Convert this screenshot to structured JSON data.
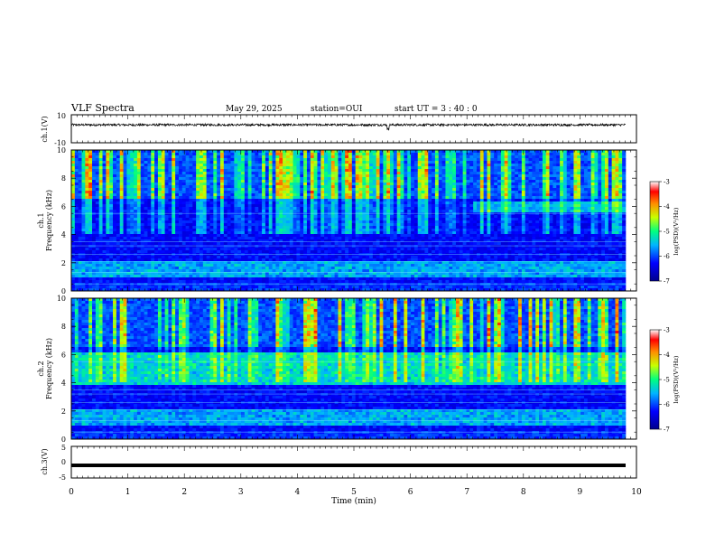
{
  "header": {
    "title": "VLF Spectra",
    "date": "May 29, 2025",
    "station": "station=OUI",
    "start": "start UT = 3 : 40 : 0"
  },
  "chart_data": [
    {
      "id": "ch1-waveform",
      "type": "line",
      "ylabel": "ch.1(V)",
      "ylim": [
        -10,
        10
      ],
      "y_ticks": [
        "10",
        "-10"
      ],
      "xlim": [
        0,
        10
      ],
      "description_level": 2.8,
      "color": "#000000"
    },
    {
      "id": "ch1-spectrogram",
      "type": "heatmap",
      "ylabel_lines": [
        "ch.1",
        "Frequency (kHz)"
      ],
      "ylim": [
        0,
        10
      ],
      "y_ticks": [
        "0",
        "2",
        "4",
        "6",
        "8",
        "10"
      ],
      "xlim": [
        0,
        10
      ],
      "colorbar": {
        "label": "log(PSD)(V²/Hz)",
        "range": [
          -7,
          -3
        ],
        "ticks": [
          "-3",
          "-4",
          "-5",
          "-6",
          "-7"
        ]
      }
    },
    {
      "id": "ch2-spectrogram",
      "type": "heatmap",
      "ylabel_lines": [
        "ch.2",
        "Frequency (kHz)"
      ],
      "ylim": [
        0,
        10
      ],
      "y_ticks": [
        "0",
        "2",
        "4",
        "6",
        "8",
        "10"
      ],
      "xlim": [
        0,
        10
      ],
      "colorbar": {
        "label": "log(PSD)(V²/Hz)",
        "range": [
          -7,
          -3
        ],
        "ticks": [
          "-3",
          "-4",
          "-5",
          "-6",
          "-7"
        ]
      }
    },
    {
      "id": "ch3-waveform",
      "type": "line",
      "ylabel": "ch.3(V)",
      "ylim": [
        -5,
        5
      ],
      "y_ticks": [
        "5",
        "0",
        "-5"
      ],
      "xlim": [
        0,
        10
      ],
      "level": -1.0,
      "color": "#000000"
    }
  ],
  "x_axis": {
    "label": "Time (min)",
    "ticks": [
      "0",
      "1",
      "2",
      "3",
      "4",
      "5",
      "6",
      "7",
      "8",
      "9",
      "10"
    ]
  }
}
